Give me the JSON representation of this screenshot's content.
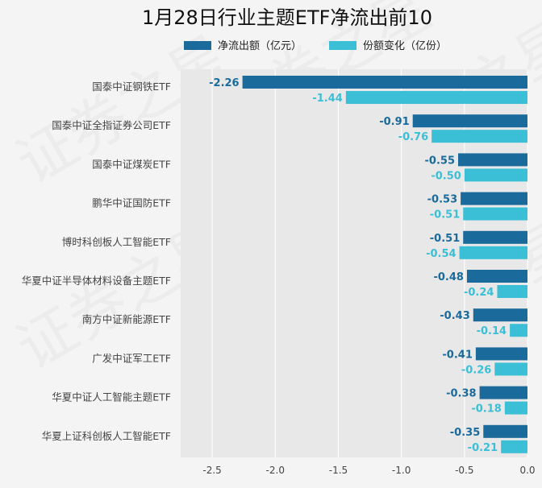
{
  "chart_data": {
    "type": "bar",
    "orientation": "horizontal",
    "title": "1月28日行业主题ETF净流出前10",
    "watermark": "证券之星",
    "categories": [
      "国泰中证钢铁ETF",
      "国泰中证全指证券公司ETF",
      "国泰中证煤炭ETF",
      "鹏华中证国防ETF",
      "博时科创板人工智能ETF",
      "华夏中证半导体材料设备主题ETF",
      "南方中证新能源ETF",
      "广发中证军工ETF",
      "华夏中证人工智能主题ETF",
      "华夏上证科创板人工智能ETF"
    ],
    "series": [
      {
        "name": "净流出额（亿元）",
        "color": "#1a6a9b",
        "values": [
          -2.26,
          -0.91,
          -0.55,
          -0.53,
          -0.51,
          -0.48,
          -0.43,
          -0.41,
          -0.38,
          -0.35
        ],
        "labels": [
          "-2.26",
          "-0.91",
          "-0.55",
          "-0.53",
          "-0.51",
          "-0.48",
          "-0.43",
          "-0.41",
          "-0.38",
          "-0.35"
        ]
      },
      {
        "name": "份额变化（亿份）",
        "color": "#3bbfd6",
        "values": [
          -1.44,
          -0.76,
          -0.5,
          -0.51,
          -0.54,
          -0.24,
          -0.14,
          -0.26,
          -0.18,
          -0.21
        ],
        "labels": [
          "-1.44",
          "-0.76",
          "-0.50",
          "-0.51",
          "-0.54",
          "-0.24",
          "-0.14",
          "-0.26",
          "-0.18",
          "-0.21"
        ]
      }
    ],
    "xlim": [
      -2.75,
      0
    ],
    "xticks": [
      -2.5,
      -2.0,
      -1.5,
      -1.0,
      -0.5,
      0.0
    ],
    "xtick_labels": [
      "-2.5",
      "-2.0",
      "-1.5",
      "-1.0",
      "-0.5",
      "0.0"
    ],
    "grid": true,
    "legend_position": "top"
  }
}
